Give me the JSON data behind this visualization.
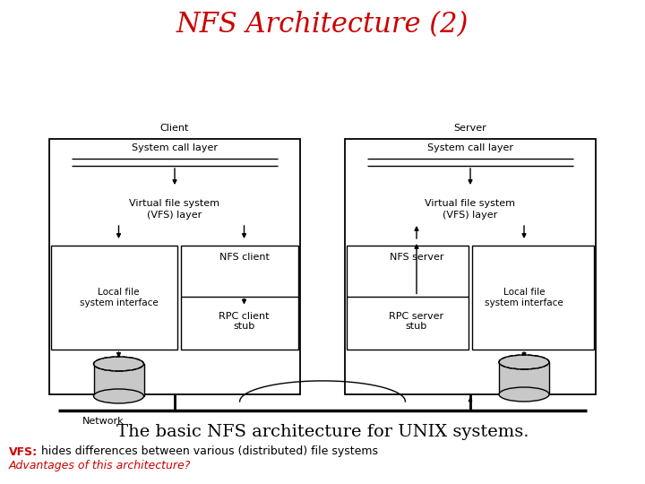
{
  "title": "NFS Architecture (2)",
  "title_color": "#cc0000",
  "title_fontsize": 22,
  "subtitle": "The basic NFS architecture for UNIX systems.",
  "subtitle_fontsize": 14,
  "vfs_line2": "Advantages of this architecture?",
  "vfs_color": "#cc0000",
  "bg_color": "#ffffff",
  "client_label": "Client",
  "server_label": "Server",
  "network_label": "Network",
  "body_fontsize": 8,
  "small_fontsize": 7.5
}
